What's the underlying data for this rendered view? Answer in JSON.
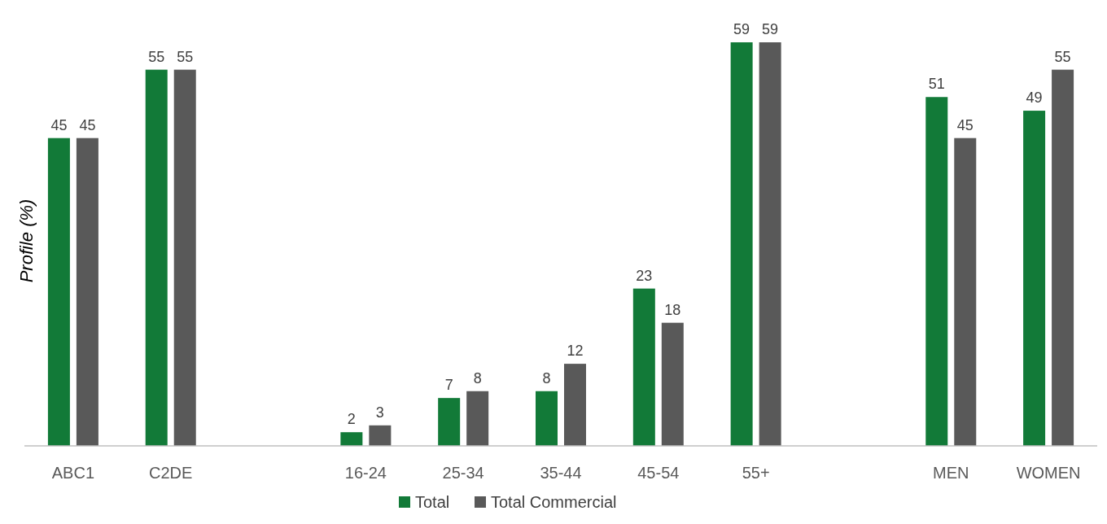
{
  "chart_data": {
    "type": "bar",
    "ylabel": "Profile (%)",
    "categories": [
      "ABC1",
      "C2DE",
      null,
      "16-24",
      "25-34",
      "35-44",
      "45-54",
      "55+",
      null,
      "MEN",
      "WOMEN"
    ],
    "series": [
      {
        "name": "Total",
        "color": "#127a38",
        "values": [
          45,
          55,
          null,
          2,
          7,
          8,
          23,
          59,
          null,
          51,
          49
        ]
      },
      {
        "name": "Total Commercial",
        "color": "#595959",
        "values": [
          45,
          55,
          null,
          3,
          8,
          12,
          18,
          59,
          null,
          45,
          55
        ]
      }
    ],
    "tick_labels": "x",
    "data_labels": true,
    "legend": "bottom"
  }
}
